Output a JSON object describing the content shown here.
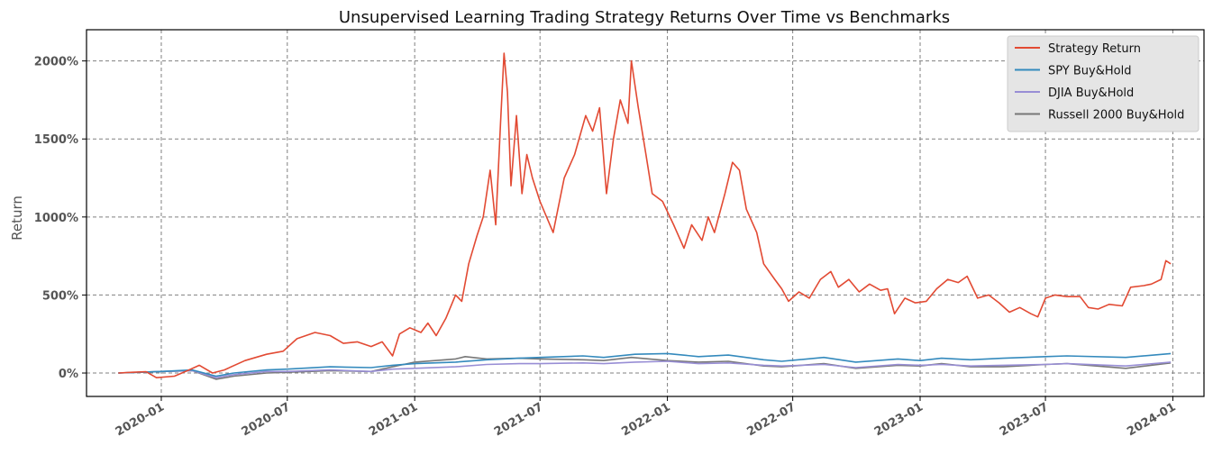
{
  "chart_data": {
    "type": "line",
    "title": "Unsupervised Learning Trading Strategy Returns Over Time vs Benchmarks",
    "xlabel": "",
    "ylabel": "Return",
    "xlim": [
      "2019-09-15",
      "2024-02-15"
    ],
    "ylim": [
      -150,
      2200
    ],
    "x_ticks": [
      "2020-01",
      "2020-07",
      "2021-01",
      "2021-07",
      "2022-01",
      "2022-07",
      "2023-01",
      "2023-07",
      "2024-01"
    ],
    "y_ticks": [
      0,
      500,
      1000,
      1500,
      2000
    ],
    "y_tick_labels": [
      "0%",
      "500%",
      "1000%",
      "1500%",
      "2000%"
    ],
    "grid": true,
    "legend_position": "top-right",
    "series": [
      {
        "name": "Strategy Return",
        "color": "#e24a33",
        "points": [
          [
            "2019-10-31",
            0
          ],
          [
            "2019-11-20",
            5
          ],
          [
            "2019-12-10",
            8
          ],
          [
            "2019-12-25",
            -30
          ],
          [
            "2020-01-20",
            -20
          ],
          [
            "2020-02-10",
            20
          ],
          [
            "2020-02-25",
            50
          ],
          [
            "2020-03-15",
            0
          ],
          [
            "2020-04-01",
            20
          ],
          [
            "2020-05-01",
            80
          ],
          [
            "2020-06-01",
            120
          ],
          [
            "2020-06-25",
            140
          ],
          [
            "2020-07-15",
            220
          ],
          [
            "2020-08-10",
            260
          ],
          [
            "2020-09-01",
            240
          ],
          [
            "2020-09-20",
            190
          ],
          [
            "2020-10-10",
            200
          ],
          [
            "2020-10-30",
            170
          ],
          [
            "2020-11-15",
            200
          ],
          [
            "2020-11-30",
            110
          ],
          [
            "2020-12-10",
            250
          ],
          [
            "2020-12-25",
            290
          ],
          [
            "2021-01-10",
            260
          ],
          [
            "2021-01-20",
            320
          ],
          [
            "2021-02-01",
            240
          ],
          [
            "2021-02-15",
            350
          ],
          [
            "2021-03-01",
            500
          ],
          [
            "2021-03-10",
            460
          ],
          [
            "2021-03-20",
            700
          ],
          [
            "2021-04-01",
            880
          ],
          [
            "2021-04-10",
            1000
          ],
          [
            "2021-04-20",
            1300
          ],
          [
            "2021-04-28",
            950
          ],
          [
            "2021-05-05",
            1600
          ],
          [
            "2021-05-10",
            2050
          ],
          [
            "2021-05-15",
            1800
          ],
          [
            "2021-05-20",
            1200
          ],
          [
            "2021-05-28",
            1650
          ],
          [
            "2021-06-05",
            1150
          ],
          [
            "2021-06-12",
            1400
          ],
          [
            "2021-06-20",
            1250
          ],
          [
            "2021-07-01",
            1100
          ],
          [
            "2021-07-20",
            900
          ],
          [
            "2021-08-05",
            1250
          ],
          [
            "2021-08-20",
            1400
          ],
          [
            "2021-09-05",
            1650
          ],
          [
            "2021-09-15",
            1550
          ],
          [
            "2021-09-25",
            1700
          ],
          [
            "2021-10-05",
            1150
          ],
          [
            "2021-10-15",
            1500
          ],
          [
            "2021-10-25",
            1750
          ],
          [
            "2021-11-05",
            1600
          ],
          [
            "2021-11-10",
            2000
          ],
          [
            "2021-11-20",
            1700
          ],
          [
            "2021-12-01",
            1400
          ],
          [
            "2021-12-10",
            1150
          ],
          [
            "2021-12-25",
            1100
          ],
          [
            "2022-01-10",
            950
          ],
          [
            "2022-01-25",
            800
          ],
          [
            "2022-02-05",
            950
          ],
          [
            "2022-02-20",
            850
          ],
          [
            "2022-03-01",
            1000
          ],
          [
            "2022-03-10",
            900
          ],
          [
            "2022-03-25",
            1150
          ],
          [
            "2022-04-05",
            1350
          ],
          [
            "2022-04-15",
            1300
          ],
          [
            "2022-04-25",
            1050
          ],
          [
            "2022-05-10",
            900
          ],
          [
            "2022-05-20",
            700
          ],
          [
            "2022-06-05",
            600
          ],
          [
            "2022-06-15",
            540
          ],
          [
            "2022-06-25",
            460
          ],
          [
            "2022-07-10",
            520
          ],
          [
            "2022-07-25",
            480
          ],
          [
            "2022-08-10",
            600
          ],
          [
            "2022-08-25",
            650
          ],
          [
            "2022-09-05",
            550
          ],
          [
            "2022-09-20",
            600
          ],
          [
            "2022-10-05",
            520
          ],
          [
            "2022-10-20",
            570
          ],
          [
            "2022-11-05",
            530
          ],
          [
            "2022-11-15",
            540
          ],
          [
            "2022-11-25",
            380
          ],
          [
            "2022-12-10",
            480
          ],
          [
            "2022-12-25",
            450
          ],
          [
            "2023-01-10",
            460
          ],
          [
            "2023-01-25",
            540
          ],
          [
            "2023-02-10",
            600
          ],
          [
            "2023-02-25",
            580
          ],
          [
            "2023-03-10",
            620
          ],
          [
            "2023-03-25",
            480
          ],
          [
            "2023-04-10",
            500
          ],
          [
            "2023-04-25",
            450
          ],
          [
            "2023-05-10",
            390
          ],
          [
            "2023-05-25",
            420
          ],
          [
            "2023-06-10",
            380
          ],
          [
            "2023-06-20",
            360
          ],
          [
            "2023-07-01",
            480
          ],
          [
            "2023-07-15",
            500
          ],
          [
            "2023-08-01",
            490
          ],
          [
            "2023-08-20",
            490
          ],
          [
            "2023-09-01",
            420
          ],
          [
            "2023-09-15",
            410
          ],
          [
            "2023-10-01",
            440
          ],
          [
            "2023-10-20",
            430
          ],
          [
            "2023-11-01",
            550
          ],
          [
            "2023-11-20",
            560
          ],
          [
            "2023-12-01",
            570
          ],
          [
            "2023-12-15",
            600
          ],
          [
            "2023-12-22",
            720
          ],
          [
            "2023-12-29",
            700
          ]
        ]
      },
      {
        "name": "SPY Buy&Hold",
        "color": "#348abd",
        "points": [
          [
            "2019-10-31",
            0
          ],
          [
            "2020-01-01",
            10
          ],
          [
            "2020-02-15",
            20
          ],
          [
            "2020-03-20",
            -20
          ],
          [
            "2020-04-15",
            0
          ],
          [
            "2020-06-01",
            20
          ],
          [
            "2020-07-01",
            25
          ],
          [
            "2020-09-01",
            40
          ],
          [
            "2020-10-30",
            35
          ],
          [
            "2020-11-30",
            50
          ],
          [
            "2021-01-01",
            60
          ],
          [
            "2021-03-01",
            70
          ],
          [
            "2021-04-15",
            85
          ],
          [
            "2021-06-01",
            95
          ],
          [
            "2021-07-01",
            100
          ],
          [
            "2021-09-01",
            110
          ],
          [
            "2021-10-01",
            100
          ],
          [
            "2021-11-15",
            120
          ],
          [
            "2022-01-01",
            125
          ],
          [
            "2022-02-15",
            105
          ],
          [
            "2022-03-30",
            115
          ],
          [
            "2022-05-20",
            85
          ],
          [
            "2022-06-15",
            75
          ],
          [
            "2022-08-15",
            100
          ],
          [
            "2022-09-30",
            70
          ],
          [
            "2022-11-30",
            90
          ],
          [
            "2023-01-01",
            80
          ],
          [
            "2023-02-01",
            95
          ],
          [
            "2023-03-15",
            85
          ],
          [
            "2023-05-01",
            95
          ],
          [
            "2023-07-01",
            105
          ],
          [
            "2023-08-01",
            110
          ],
          [
            "2023-10-25",
            100
          ],
          [
            "2023-12-29",
            125
          ]
        ]
      },
      {
        "name": "DJIA Buy&Hold",
        "color": "#988ed5",
        "points": [
          [
            "2019-10-31",
            0
          ],
          [
            "2020-01-01",
            10
          ],
          [
            "2020-02-15",
            15
          ],
          [
            "2020-03-20",
            -30
          ],
          [
            "2020-04-15",
            -10
          ],
          [
            "2020-06-01",
            10
          ],
          [
            "2020-07-01",
            10
          ],
          [
            "2020-09-01",
            20
          ],
          [
            "2020-10-30",
            10
          ],
          [
            "2020-11-30",
            25
          ],
          [
            "2021-01-01",
            30
          ],
          [
            "2021-03-01",
            40
          ],
          [
            "2021-04-15",
            55
          ],
          [
            "2021-06-01",
            60
          ],
          [
            "2021-07-01",
            60
          ],
          [
            "2021-09-01",
            65
          ],
          [
            "2021-10-01",
            60
          ],
          [
            "2021-11-15",
            70
          ],
          [
            "2022-01-01",
            75
          ],
          [
            "2022-02-15",
            60
          ],
          [
            "2022-03-30",
            65
          ],
          [
            "2022-05-20",
            50
          ],
          [
            "2022-06-15",
            45
          ],
          [
            "2022-08-15",
            55
          ],
          [
            "2022-09-30",
            35
          ],
          [
            "2022-11-30",
            55
          ],
          [
            "2023-01-01",
            50
          ],
          [
            "2023-02-01",
            55
          ],
          [
            "2023-03-15",
            45
          ],
          [
            "2023-05-01",
            50
          ],
          [
            "2023-07-01",
            55
          ],
          [
            "2023-08-01",
            60
          ],
          [
            "2023-10-25",
            45
          ],
          [
            "2023-12-29",
            70
          ]
        ]
      },
      {
        "name": "Russell 2000 Buy&Hold",
        "color": "#777777",
        "points": [
          [
            "2019-10-31",
            0
          ],
          [
            "2020-01-01",
            10
          ],
          [
            "2020-02-15",
            15
          ],
          [
            "2020-03-20",
            -40
          ],
          [
            "2020-04-15",
            -20
          ],
          [
            "2020-06-01",
            0
          ],
          [
            "2020-07-01",
            5
          ],
          [
            "2020-09-01",
            15
          ],
          [
            "2020-10-30",
            10
          ],
          [
            "2020-11-30",
            40
          ],
          [
            "2021-01-01",
            70
          ],
          [
            "2021-03-01",
            90
          ],
          [
            "2021-03-15",
            105
          ],
          [
            "2021-04-15",
            90
          ],
          [
            "2021-06-01",
            95
          ],
          [
            "2021-07-01",
            90
          ],
          [
            "2021-09-01",
            85
          ],
          [
            "2021-10-01",
            80
          ],
          [
            "2021-11-10",
            100
          ],
          [
            "2022-01-01",
            80
          ],
          [
            "2022-02-15",
            70
          ],
          [
            "2022-03-30",
            75
          ],
          [
            "2022-05-20",
            45
          ],
          [
            "2022-06-15",
            40
          ],
          [
            "2022-08-15",
            60
          ],
          [
            "2022-09-30",
            30
          ],
          [
            "2022-11-30",
            50
          ],
          [
            "2023-01-01",
            45
          ],
          [
            "2023-02-01",
            60
          ],
          [
            "2023-03-15",
            40
          ],
          [
            "2023-05-01",
            40
          ],
          [
            "2023-07-01",
            55
          ],
          [
            "2023-08-01",
            60
          ],
          [
            "2023-10-25",
            30
          ],
          [
            "2023-12-29",
            65
          ]
        ]
      }
    ]
  }
}
